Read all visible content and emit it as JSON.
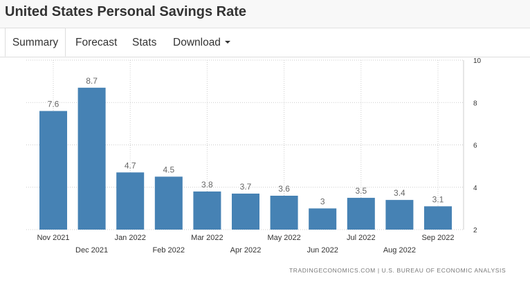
{
  "header": {
    "title": "United States Personal Savings Rate"
  },
  "tabs": [
    {
      "label": "Summary",
      "active": true
    },
    {
      "label": "Forecast",
      "active": false
    },
    {
      "label": "Stats",
      "active": false
    },
    {
      "label": "Download",
      "active": false
    }
  ],
  "source": "TRADINGECONOMICS.COM  |  U.S. BUREAU OF ECONOMIC ANALYSIS",
  "colors": {
    "bar": "#4682b4",
    "grid": "#cccccc",
    "label": "#666666",
    "tick": "#333333"
  },
  "chart_data": {
    "type": "bar",
    "categories": [
      "Nov 2021",
      "Dec 2021",
      "Jan 2022",
      "Feb 2022",
      "Mar 2022",
      "Apr 2022",
      "May 2022",
      "Jun 2022",
      "Jul 2022",
      "Aug 2022",
      "Sep 2022"
    ],
    "values": [
      7.6,
      8.7,
      4.7,
      4.5,
      3.8,
      3.7,
      3.6,
      3,
      3.5,
      3.4,
      3.1
    ],
    "data_labels": [
      "7.6",
      "8.7",
      "4.7",
      "4.5",
      "3.8",
      "3.7",
      "3.6",
      "3",
      "3.5",
      "3.4",
      "3.1"
    ],
    "yticks": [
      2,
      4,
      6,
      8,
      10
    ],
    "ytick_labels": [
      "2",
      "4",
      "6",
      "8",
      "10"
    ],
    "ylim": [
      2,
      10
    ],
    "y_axis_position": "right",
    "x_labels_staggered": true,
    "grid": true,
    "title": "",
    "xlabel": "",
    "ylabel": ""
  }
}
